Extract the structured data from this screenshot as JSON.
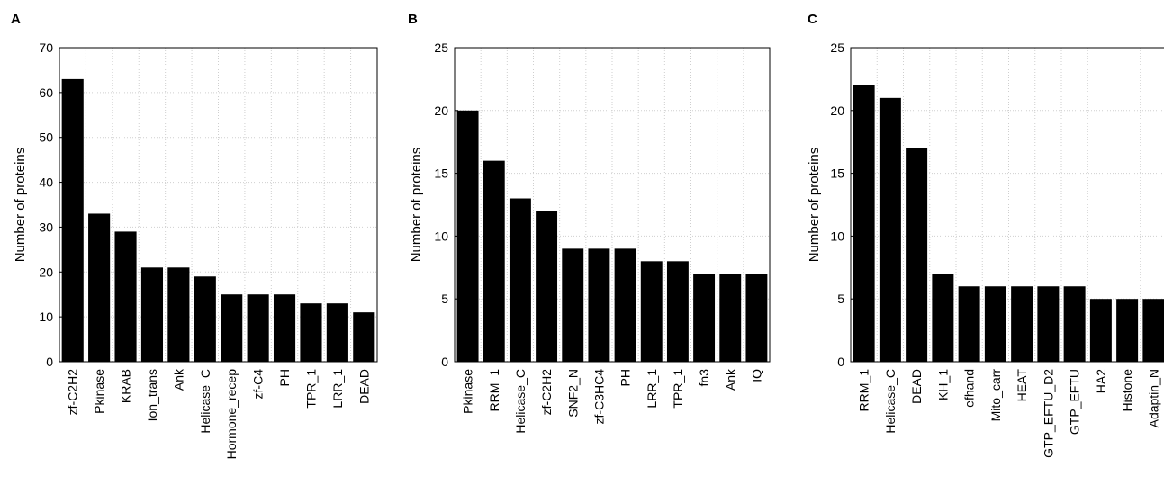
{
  "chart_data": [
    {
      "type": "bar",
      "panel": "A",
      "ylabel": "Number of proteins",
      "ylim": [
        0,
        70
      ],
      "yticks": [
        0,
        10,
        20,
        30,
        40,
        50,
        60,
        70
      ],
      "grid": true,
      "categories": [
        "zf-C2H2",
        "Pkinase",
        "KRAB",
        "Ion_trans",
        "Ank",
        "Helicase_C",
        "Hormone_recep",
        "zf-C4",
        "PH",
        "TPR_1",
        "LRR_1",
        "DEAD"
      ],
      "values": [
        63,
        33,
        29,
        21,
        21,
        19,
        15,
        15,
        15,
        13,
        13,
        11
      ]
    },
    {
      "type": "bar",
      "panel": "B",
      "ylabel": "Number of proteins",
      "ylim": [
        0,
        25
      ],
      "yticks": [
        0,
        5,
        10,
        15,
        20,
        25
      ],
      "grid": true,
      "categories": [
        "Pkinase",
        "RRM_1",
        "Helicase_C",
        "zf-C2H2",
        "SNF2_N",
        "zf-C3HC4",
        "PH",
        "LRR_1",
        "TPR_1",
        "fn3",
        "Ank",
        "IQ"
      ],
      "values": [
        20,
        16,
        13,
        12,
        9,
        9,
        9,
        8,
        8,
        7,
        7,
        7
      ]
    },
    {
      "type": "bar",
      "panel": "C",
      "ylabel": "Number of proteins",
      "ylim": [
        0,
        25
      ],
      "yticks": [
        0,
        5,
        10,
        15,
        20,
        25
      ],
      "grid": true,
      "categories": [
        "RRM_1",
        "Helicase_C",
        "DEAD",
        "KH_1",
        "efhand",
        "Mito_carr",
        "HEAT",
        "GTP_EFTU_D2",
        "GTP_EFTU",
        "HA2",
        "Histone",
        "Adaptin_N"
      ],
      "values": [
        22,
        21,
        17,
        7,
        6,
        6,
        6,
        6,
        6,
        5,
        5,
        5
      ]
    }
  ]
}
